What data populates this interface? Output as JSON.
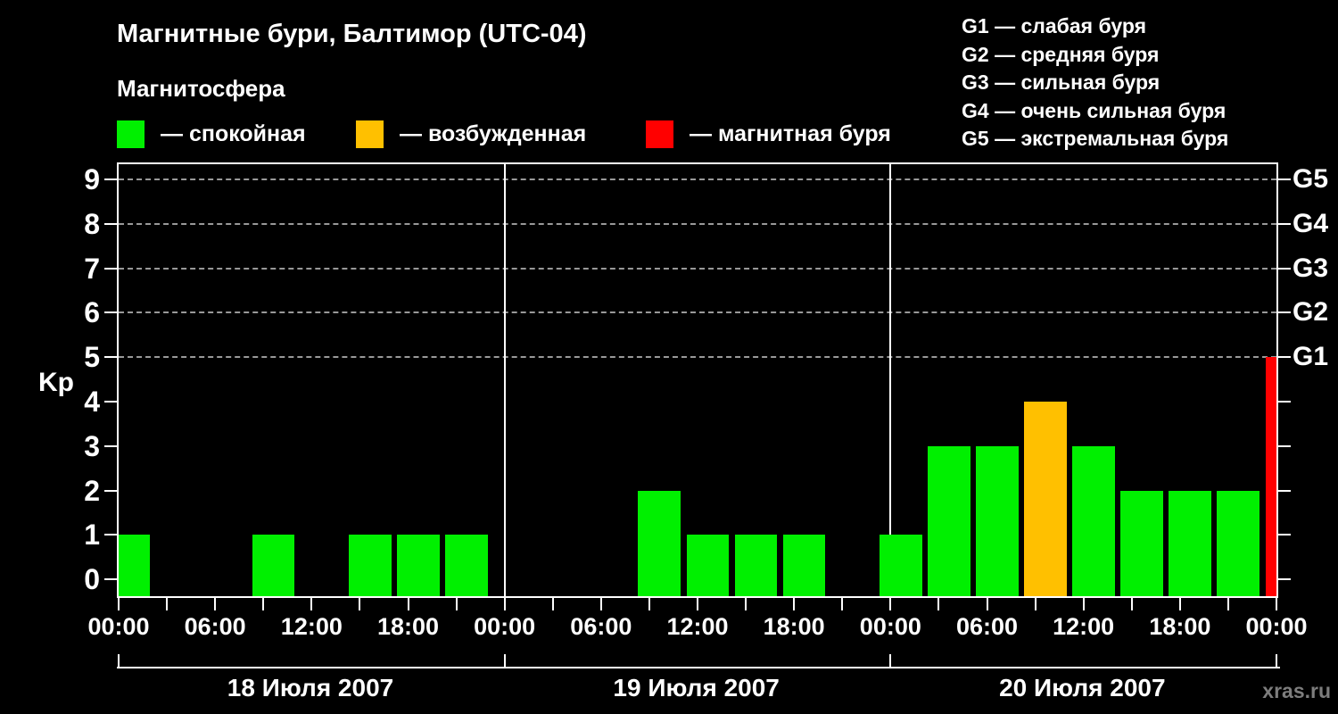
{
  "title": "Магнитные бури, Балтимор (UTC-04)",
  "subtitle": "Магнитосфера",
  "legend": {
    "items": [
      {
        "key": "quiet",
        "label": "— спокойная",
        "color": "#00f000"
      },
      {
        "key": "disturbed",
        "label": "— возбужденная",
        "color": "#ffc000"
      },
      {
        "key": "storm",
        "label": "— магнитная буря",
        "color": "#ff0000"
      }
    ]
  },
  "g_legend": [
    {
      "code": "G1",
      "label": "— слабая буря"
    },
    {
      "code": "G2",
      "label": "— средняя буря"
    },
    {
      "code": "G3",
      "label": "— сильная буря"
    },
    {
      "code": "G4",
      "label": "— очень сильная буря"
    },
    {
      "code": "G5",
      "label": "— экстремальная буря"
    }
  ],
  "watermark": "xras.ru",
  "chart_data": {
    "type": "bar",
    "title": "Магнитные бури, Балтимор (UTC-04)",
    "ylabel": "Kp",
    "ylim": [
      0,
      9
    ],
    "yticks": [
      0,
      1,
      2,
      3,
      4,
      5,
      6,
      7,
      8,
      9
    ],
    "gridlines_at_kp": [
      5,
      6,
      7,
      8,
      9
    ],
    "right_axis": [
      {
        "kp": 5,
        "label": "G1"
      },
      {
        "kp": 6,
        "label": "G2"
      },
      {
        "kp": 7,
        "label": "G3"
      },
      {
        "kp": 8,
        "label": "G4"
      },
      {
        "kp": 9,
        "label": "G5"
      }
    ],
    "x_major_labels": [
      "00:00",
      "06:00",
      "12:00",
      "18:00"
    ],
    "x_final_label": "00:00",
    "slot_hours": 3,
    "days": [
      {
        "date": "18 Июля 2007",
        "kp_values": [
          1,
          0,
          0,
          1,
          0,
          1,
          1,
          1
        ]
      },
      {
        "date": "19 Июля 2007",
        "kp_values": [
          0,
          0,
          0,
          2,
          1,
          1,
          1,
          0
        ]
      },
      {
        "date": "20 Июля 2007",
        "kp_values": [
          1,
          3,
          3,
          4,
          3,
          2,
          2,
          2
        ]
      }
    ],
    "next_day_first_slot_kp": 5,
    "colors": {
      "quiet": "#00f000",
      "disturbed": "#ffc000",
      "storm": "#ff0000"
    },
    "color_thresholds": {
      "quiet_kp_max": 3,
      "disturbed_kp": 4,
      "storm_kp_min": 5
    },
    "grid": "dashed horizontal at Kp 5-9 only",
    "legend_position": "top"
  }
}
